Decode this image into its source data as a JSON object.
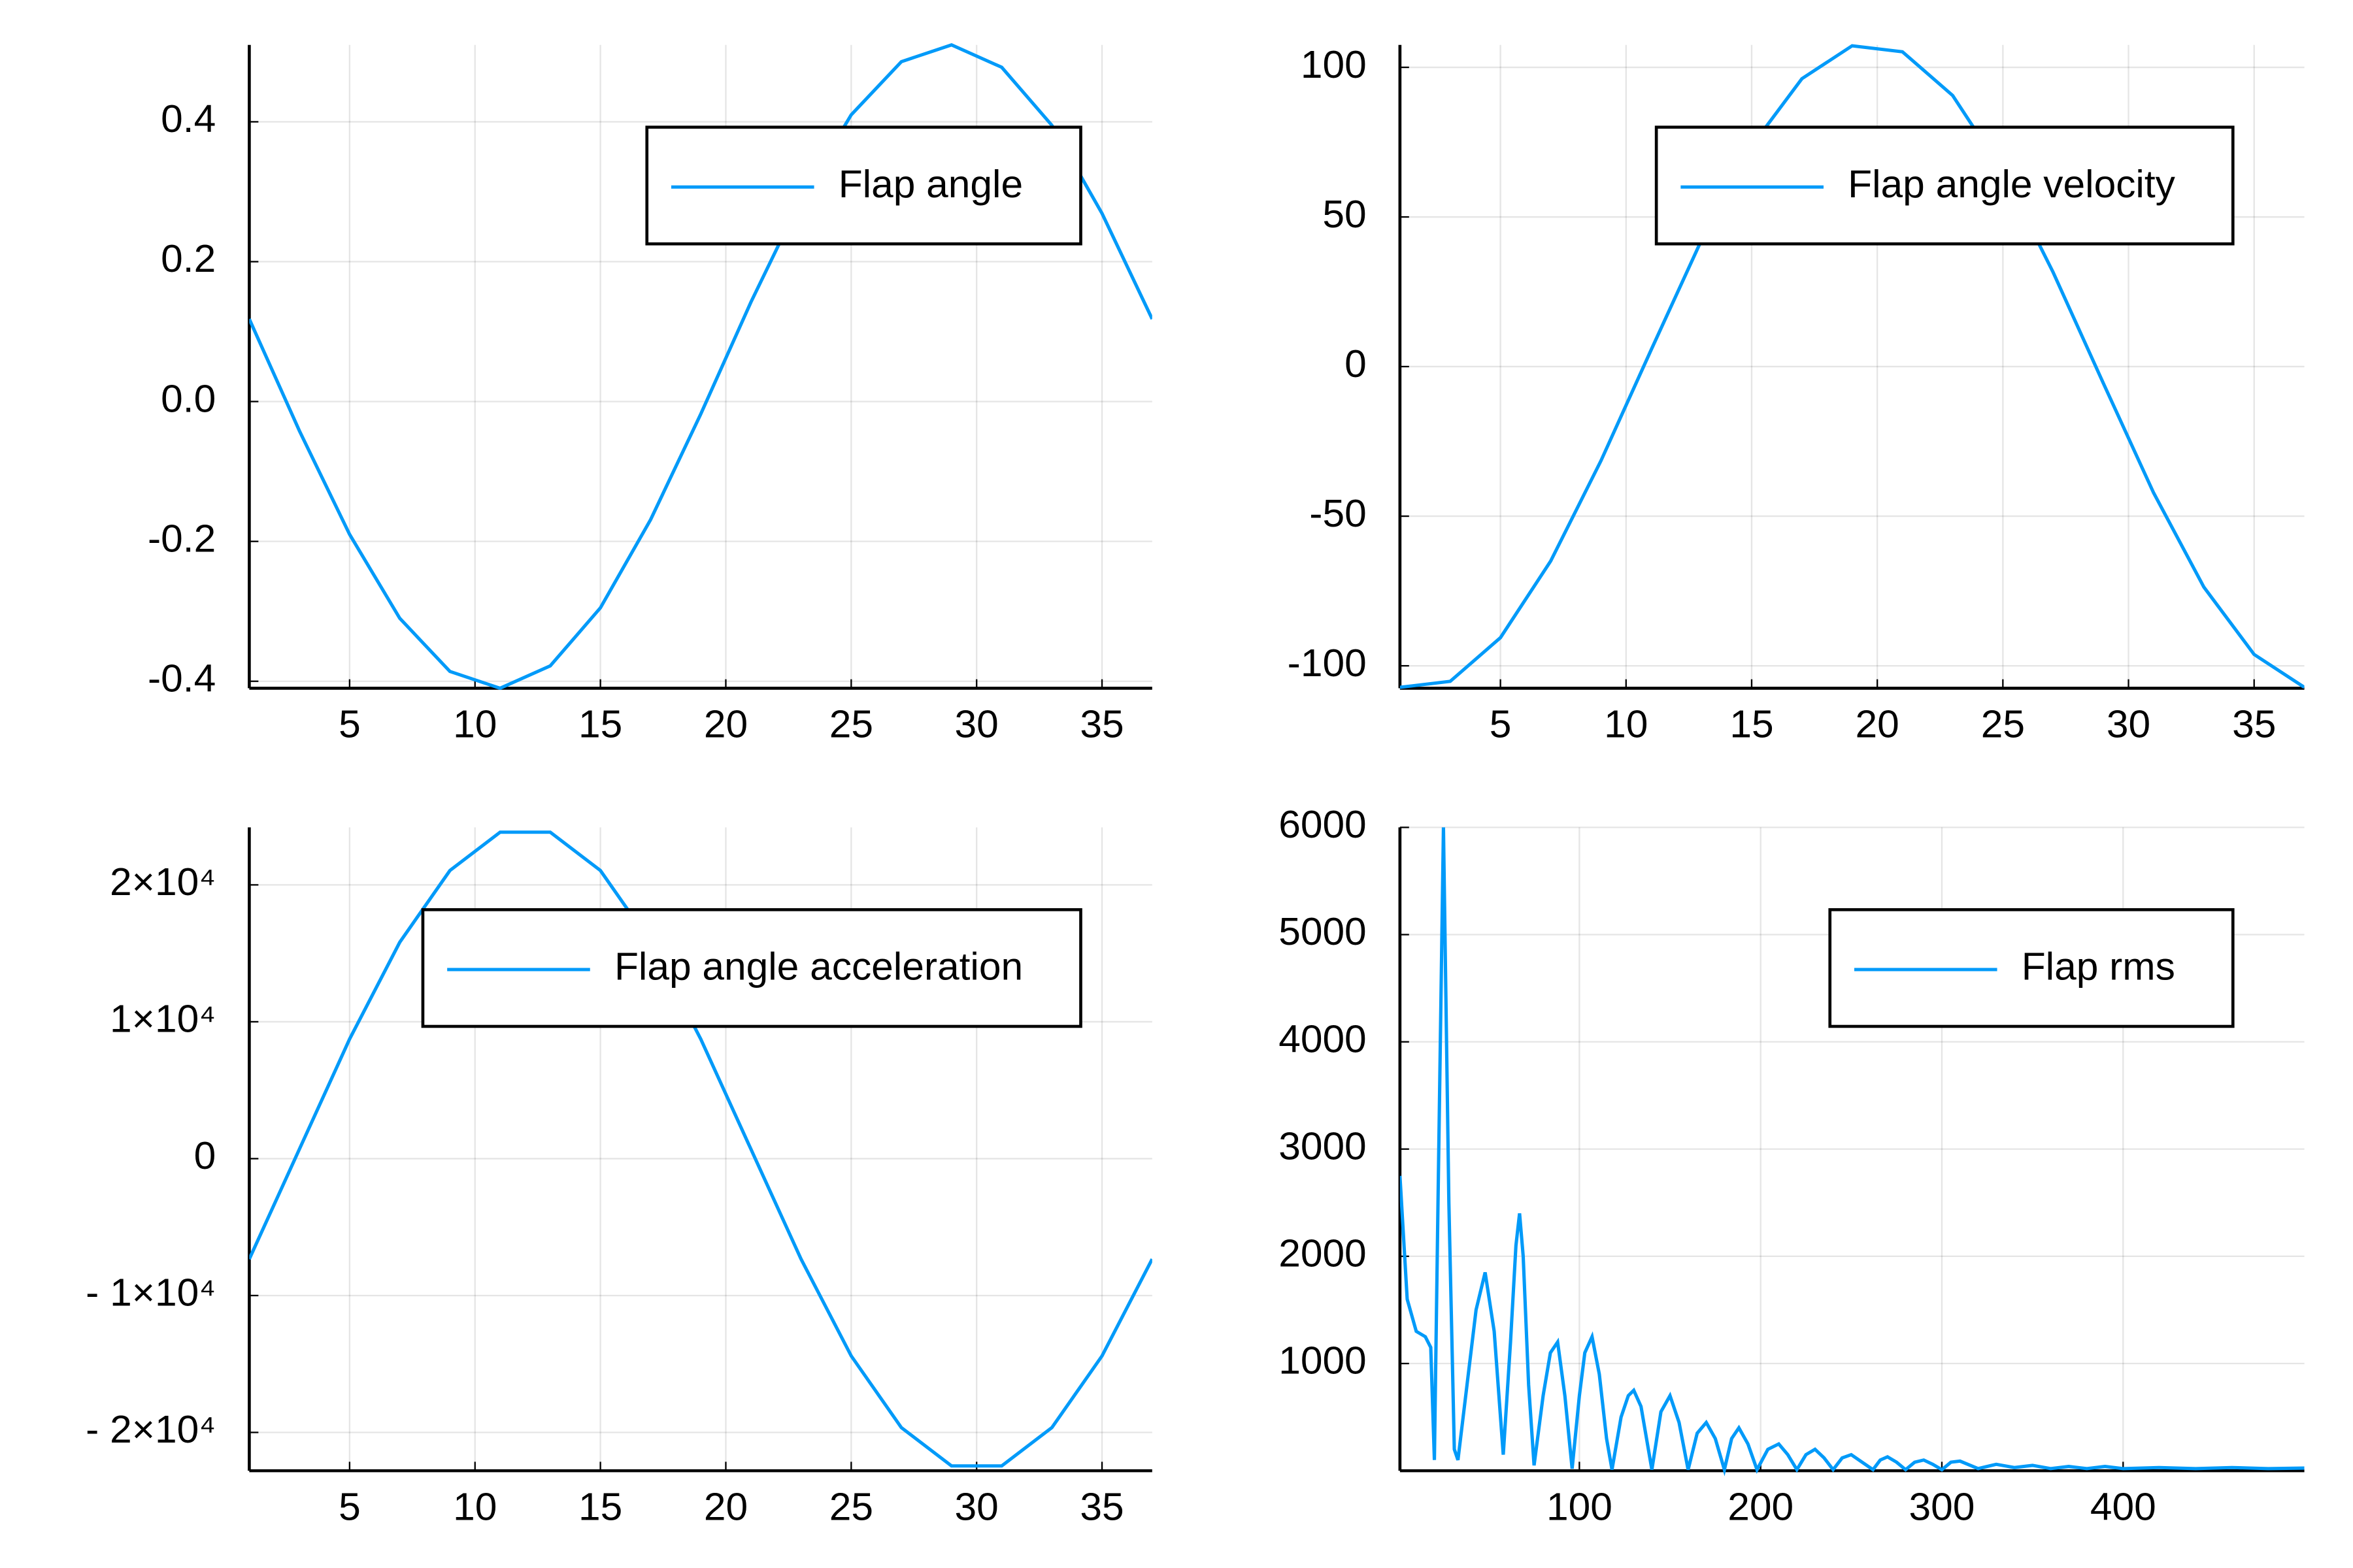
{
  "chart_data": [
    {
      "type": "line",
      "xlim": [
        1,
        37
      ],
      "ylim": [
        -0.41,
        0.51
      ],
      "xticks": [
        5,
        10,
        15,
        20,
        25,
        30,
        35
      ],
      "yticks": [
        -0.4,
        -0.2,
        {
          "value": 0,
          "label": "0.0"
        },
        0.2,
        0.4
      ],
      "grid": true,
      "legend": "top-right",
      "x": [
        1,
        3,
        5,
        7,
        9,
        11,
        13,
        15,
        17,
        19,
        21,
        23,
        25,
        27,
        29,
        31,
        33,
        35,
        37
      ],
      "series": [
        {
          "name": "Flap angle",
          "color": "#009af9",
          "values": [
            0.118,
            -0.042,
            -0.19,
            -0.31,
            -0.386,
            -0.41,
            -0.378,
            -0.295,
            -0.169,
            -0.018,
            0.142,
            0.29,
            0.41,
            0.486,
            0.51,
            0.478,
            0.395,
            0.269,
            0.118
          ]
        }
      ]
    },
    {
      "type": "line",
      "xlim": [
        1,
        37
      ],
      "ylim": [
        -107.5,
        107.5
      ],
      "xticks": [
        5,
        10,
        15,
        20,
        25,
        30,
        35
      ],
      "yticks": [
        -100,
        -50,
        0,
        50,
        100
      ],
      "grid": true,
      "legend": "top-right",
      "x": [
        1,
        3,
        5,
        7,
        9,
        11,
        13,
        15,
        17,
        19,
        21,
        23,
        25,
        27,
        29,
        31,
        33,
        35,
        37
      ],
      "series": [
        {
          "name": "Flap angle velocity",
          "color": "#009af9",
          "values": [
            -107.2,
            -105.2,
            -90.6,
            -65.0,
            -31.5,
            5.6,
            42.2,
            73.7,
            96.2,
            107.2,
            105.2,
            90.6,
            65.0,
            31.5,
            -5.6,
            -42.2,
            -73.7,
            -96.2,
            -107.2
          ]
        }
      ]
    },
    {
      "type": "line",
      "xlim": [
        1,
        37
      ],
      "ylim": [
        -22800,
        24200
      ],
      "xticks": [
        5,
        10,
        15,
        20,
        25,
        30,
        35
      ],
      "yticks": [
        {
          "value": -20000,
          "label": "- 2×10⁴"
        },
        {
          "value": -10000,
          "label": "- 1×10⁴"
        },
        0,
        {
          "value": 10000,
          "label": "1×10⁴"
        },
        {
          "value": 20000,
          "label": "2×10⁴"
        }
      ],
      "grid": true,
      "legend": "top-right",
      "x": [
        1,
        3,
        5,
        7,
        9,
        11,
        13,
        15,
        17,
        19,
        21,
        23,
        25,
        27,
        29,
        31,
        33,
        35,
        37
      ],
      "series": [
        {
          "name": "Flap angle acceleration",
          "color": "#009af9",
          "values": [
            -7337,
            700,
            8737,
            15811,
            21051,
            23848,
            23848,
            21051,
            15811,
            8737,
            700,
            -7337,
            -14411,
            -19651,
            -22448,
            -22448,
            -19651,
            -14411,
            -7337
          ]
        }
      ]
    },
    {
      "type": "line",
      "xlim": [
        1,
        500
      ],
      "ylim": [
        0,
        6000
      ],
      "xticks": [
        100,
        200,
        300,
        400
      ],
      "yticks": [
        1000,
        2000,
        3000,
        4000,
        5000,
        6000
      ],
      "grid": true,
      "legend": "top-right",
      "x": [
        1,
        5,
        10,
        15,
        18,
        20,
        22,
        25,
        28,
        31,
        33,
        38,
        43,
        48,
        53,
        58,
        62,
        65,
        67,
        69,
        72,
        75,
        80,
        84,
        88,
        92,
        96,
        100,
        103,
        107,
        111,
        115,
        118,
        123,
        127,
        130,
        134,
        140,
        145,
        150,
        155,
        160,
        165,
        170,
        175,
        180,
        184,
        188,
        193,
        198,
        204,
        210,
        215,
        220,
        225,
        230,
        235,
        240,
        245,
        250,
        256,
        262,
        266,
        270,
        275,
        280,
        285,
        290,
        295,
        300,
        305,
        310,
        320,
        330,
        340,
        350,
        360,
        370,
        380,
        390,
        400,
        420,
        440,
        460,
        480,
        500
      ],
      "series": [
        {
          "name": "Flap rms",
          "color": "#009af9",
          "values": [
            2750,
            1600,
            1300,
            1250,
            1150,
            100,
            2500,
            6000,
            2500,
            200,
            100,
            800,
            1500,
            1850,
            1300,
            150,
            1200,
            2100,
            2400,
            2000,
            800,
            50,
            700,
            1100,
            1200,
            700,
            20,
            700,
            1100,
            1250,
            900,
            300,
            10,
            500,
            700,
            750,
            600,
            10,
            550,
            700,
            450,
            10,
            350,
            450,
            300,
            10,
            300,
            400,
            250,
            10,
            200,
            250,
            150,
            10,
            150,
            200,
            120,
            10,
            120,
            150,
            80,
            10,
            100,
            130,
            80,
            10,
            80,
            100,
            60,
            10,
            80,
            90,
            20,
            60,
            30,
            50,
            20,
            40,
            20,
            40,
            20,
            30,
            20,
            30,
            20,
            25
          ]
        }
      ]
    }
  ]
}
